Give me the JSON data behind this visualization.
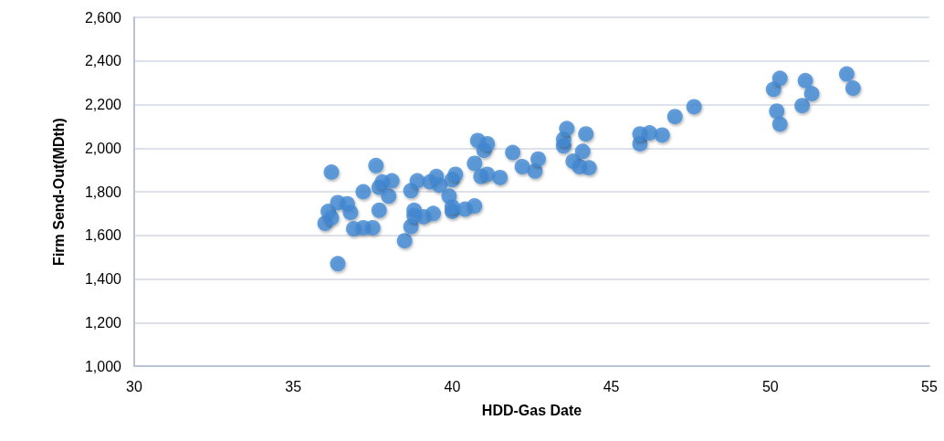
{
  "chart_data": {
    "type": "scatter",
    "xlabel": "HDD-Gas Date",
    "ylabel": "Firm Send-Out(MDth)",
    "x": [
      36.2,
      36.4,
      36.0,
      36.1,
      36.2,
      36.4,
      36.7,
      36.8,
      36.9,
      37.2,
      37.2,
      37.5,
      37.6,
      37.7,
      37.7,
      37.8,
      38.0,
      38.1,
      38.5,
      38.7,
      38.7,
      38.8,
      38.8,
      38.9,
      39.1,
      39.3,
      39.4,
      39.5,
      39.6,
      39.9,
      40.0,
      40.0,
      40.0,
      40.1,
      40.4,
      40.7,
      40.7,
      40.8,
      40.9,
      41.0,
      41.1,
      41.1,
      41.5,
      41.9,
      42.2,
      42.6,
      42.7,
      43.5,
      43.5,
      43.6,
      43.8,
      44.0,
      44.1,
      44.2,
      44.3,
      45.9,
      45.9,
      46.2,
      46.6,
      47.0,
      47.6,
      50.1,
      50.2,
      50.3,
      50.3,
      51.0,
      51.1,
      51.3,
      52.4,
      52.6
    ],
    "values": [
      1890,
      1470,
      1655,
      1710,
      1680,
      1750,
      1745,
      1705,
      1630,
      1635,
      1800,
      1635,
      1920,
      1715,
      1820,
      1845,
      1780,
      1850,
      1575,
      1640,
      1805,
      1715,
      1690,
      1850,
      1685,
      1845,
      1700,
      1870,
      1830,
      1780,
      1710,
      1730,
      1855,
      1880,
      1720,
      1735,
      1930,
      2035,
      1870,
      1990,
      2020,
      1880,
      1865,
      1980,
      1915,
      1895,
      1950,
      2010,
      2040,
      2090,
      1940,
      1915,
      1985,
      2065,
      1910,
      2020,
      2065,
      2070,
      2060,
      2145,
      2190,
      2270,
      2170,
      2110,
      2320,
      2195,
      2310,
      2250,
      2340,
      2275
    ],
    "color": "#4189d4",
    "marker": "circle",
    "xlim": [
      30,
      55
    ],
    "xticks": [
      30,
      35,
      40,
      45,
      50,
      55
    ],
    "ylim": [
      1000,
      2600
    ],
    "yticks": [
      {
        "value": 1000,
        "label": "1,000"
      },
      {
        "value": 1200,
        "label": "1,200"
      },
      {
        "value": 1400,
        "label": "1,400"
      },
      {
        "value": 1600,
        "label": "1,600"
      },
      {
        "value": 1800,
        "label": "1,800"
      },
      {
        "value": 2000,
        "label": "2,000"
      },
      {
        "value": 2200,
        "label": "2,200"
      },
      {
        "value": 2400,
        "label": "2,400"
      },
      {
        "value": 2600,
        "label": "2,600"
      }
    ],
    "grid": "y"
  }
}
